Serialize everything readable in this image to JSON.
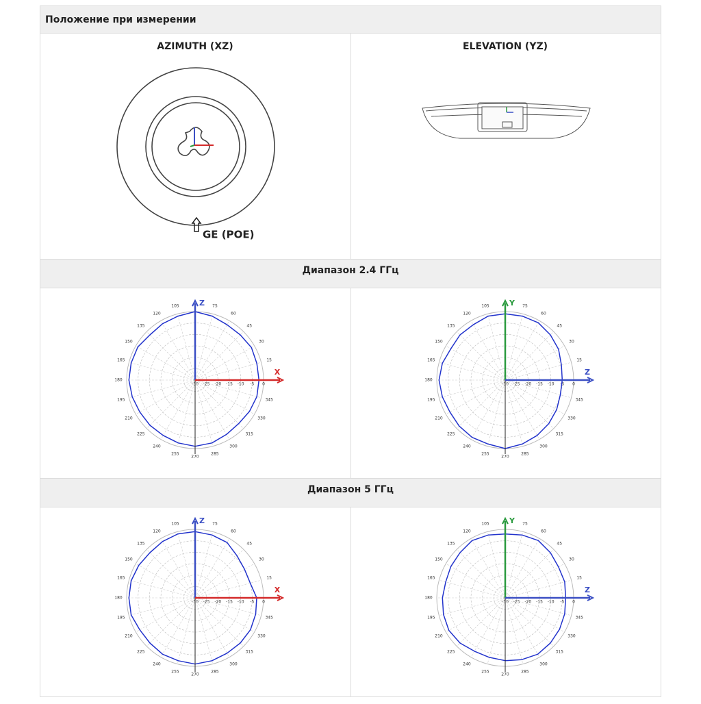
{
  "header": {
    "title": "Положение при измерении"
  },
  "position": {
    "azimuth": {
      "title": "AZIMUTH (XZ)",
      "marker": "GE (POE)"
    },
    "elevation": {
      "title": "ELEVATION (YZ)"
    }
  },
  "polar": {
    "angles": [
      15,
      30,
      45,
      60,
      75,
      105,
      120,
      135,
      150,
      165,
      180,
      195,
      210,
      225,
      240,
      255,
      270,
      285,
      300,
      315,
      330,
      345
    ],
    "rings": [
      -30,
      -25,
      -20,
      -15,
      -10,
      -5,
      0
    ]
  },
  "bands": [
    {
      "title": "Диапазон 2.4 ГГц",
      "plots": [
        {
          "axes": [
            {
              "label": "Z",
              "color": "#3b4fc4"
            },
            {
              "label": "X",
              "color": "#d42a2a"
            }
          ],
          "gain": [
            -2,
            -2,
            -1.5,
            -2,
            -2,
            -1,
            0,
            -1,
            -1.5,
            -2,
            -1,
            -1,
            -1,
            -1.5,
            -2,
            -2,
            -2,
            -1.5,
            -1,
            -1.5,
            -2.5,
            -3,
            -2.5,
            -2
          ]
        },
        {
          "axes": [
            {
              "label": "Y",
              "color": "#2a9a3e"
            },
            {
              "label": "Z",
              "color": "#3b4fc4"
            }
          ],
          "gain": [
            -5,
            -4.5,
            -3,
            -2,
            -1,
            -1,
            -1,
            -1,
            -2,
            -2,
            -2.5,
            -1.5,
            -1,
            -1.5,
            -2,
            -1.5,
            -1,
            -1,
            0,
            -1,
            -2,
            -3,
            -4,
            -5
          ]
        }
      ]
    },
    {
      "title": "Диапазон 5 ГГц",
      "plots": [
        {
          "axes": [
            {
              "label": "Z",
              "color": "#3b4fc4"
            },
            {
              "label": "X",
              "color": "#d42a2a"
            }
          ],
          "gain": [
            -3,
            -5,
            -5,
            -4,
            -2,
            -1.5,
            -1,
            -1,
            -1.5,
            -2,
            -1.5,
            -1,
            -1,
            -1,
            -2,
            -2,
            -1.5,
            -1.5,
            -1,
            -1.5,
            -2,
            -2,
            -2,
            -2.5
          ]
        },
        {
          "axes": [
            {
              "label": "Y",
              "color": "#2a9a3e"
            },
            {
              "label": "Z",
              "color": "#3b4fc4"
            }
          ],
          "gain": [
            -3.5,
            -3,
            -3,
            -2,
            -1,
            -1.5,
            -2,
            -1.5,
            -1,
            -2,
            -2.5,
            -3,
            -2.5,
            -2,
            -1.5,
            -2,
            -3,
            -3,
            -2.5,
            -2,
            -1.5,
            -2,
            -2.5,
            -3
          ]
        }
      ]
    }
  ]
}
